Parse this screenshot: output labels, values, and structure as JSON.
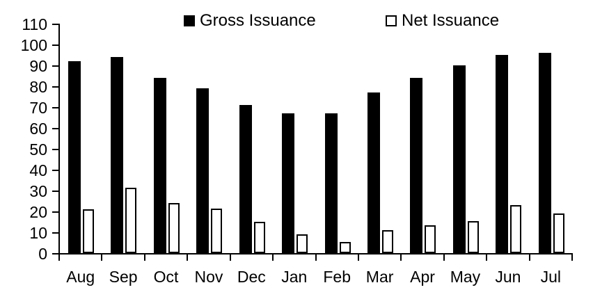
{
  "chart_data": {
    "type": "bar",
    "title": "",
    "xlabel": "",
    "ylabel": "",
    "categories": [
      "Aug",
      "Sep",
      "Oct",
      "Nov",
      "Dec",
      "Jan",
      "Feb",
      "Mar",
      "Apr",
      "May",
      "Jun",
      "Jul"
    ],
    "series": [
      {
        "name": "Gross Issuance",
        "style": "solid",
        "color": "#000000",
        "values": [
          92,
          94,
          84,
          79,
          71,
          67,
          67,
          77,
          84,
          90,
          95,
          96
        ]
      },
      {
        "name": "Net Issuance",
        "style": "outline",
        "color": "#ffffff",
        "border": "#000000",
        "values": [
          21,
          31.5,
          24,
          21.5,
          15,
          9,
          5.5,
          11,
          13.5,
          15.5,
          23,
          19
        ]
      }
    ],
    "ylim": [
      0,
      110
    ],
    "ytick_step": 10,
    "ytick_labels": [
      "0",
      "10",
      "20",
      "30",
      "40",
      "50",
      "60",
      "70",
      "80",
      "90",
      "100",
      "110"
    ],
    "grid": false,
    "legend_position": "top",
    "axis_color": "#000000",
    "background": "#ffffff"
  }
}
